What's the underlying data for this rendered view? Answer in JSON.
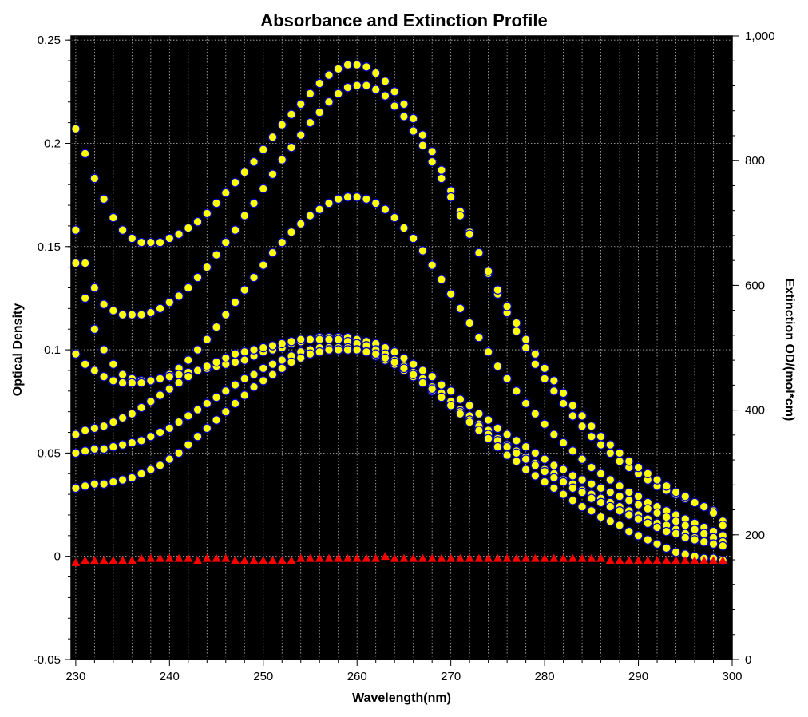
{
  "chart_data": {
    "type": "scatter",
    "title": "Absorbance and Extinction Profile",
    "xlabel": "Wavelength(nm)",
    "ylabel": "Optical Density",
    "y2label": "Extinction OD/(mol*cm)",
    "xlim": [
      229.5,
      300
    ],
    "ylim": [
      -0.05,
      0.252
    ],
    "y2lim": [
      0,
      1000
    ],
    "x_ticks": [
      "230",
      "240",
      "250",
      "260",
      "270",
      "280",
      "290",
      "300"
    ],
    "y_ticks": [
      "-0.05",
      "0",
      "0.05",
      "0.1",
      "0.15",
      "0.2",
      "0.25"
    ],
    "y2_ticks": [
      "0",
      "200",
      "400",
      "600",
      "800",
      "1,000"
    ],
    "background": "#000000",
    "grid": true,
    "colors": {
      "point_fill": "#ffff00",
      "point_stroke": "#0000cc",
      "residual": "#ff0000"
    },
    "x": [
      230,
      231,
      232,
      233,
      234,
      235,
      236,
      237,
      238,
      239,
      240,
      241,
      242,
      243,
      244,
      245,
      246,
      247,
      248,
      249,
      250,
      251,
      252,
      253,
      254,
      255,
      256,
      257,
      258,
      259,
      260,
      261,
      262,
      263,
      264,
      265,
      266,
      267,
      268,
      269,
      270,
      271,
      272,
      273,
      274,
      275,
      276,
      277,
      278,
      279,
      280,
      281,
      282,
      283,
      284,
      285,
      286,
      287,
      288,
      289,
      290,
      291,
      292,
      293,
      294,
      295,
      296,
      297,
      298,
      299
    ],
    "series": [
      {
        "values": [
          0.207,
          0.195,
          0.183,
          0.173,
          0.164,
          0.158,
          0.154,
          0.152,
          0.152,
          0.152,
          0.154,
          0.156,
          0.159,
          0.162,
          0.166,
          0.171,
          0.176,
          0.181,
          0.186,
          0.191,
          0.197,
          0.203,
          0.209,
          0.214,
          0.219,
          0.224,
          0.229,
          0.233,
          0.236,
          0.238,
          0.238,
          0.237,
          0.234,
          0.23,
          0.225,
          0.219,
          0.212,
          0.204,
          0.196,
          0.187,
          0.177,
          0.167,
          0.157,
          0.147,
          0.137,
          0.127,
          0.118,
          0.109,
          0.101,
          0.093,
          0.086,
          0.08,
          0.074,
          0.068,
          0.063,
          0.058,
          0.054,
          0.05,
          0.046,
          0.043,
          0.04,
          0.037,
          0.034,
          0.032,
          0.03,
          0.028,
          0.026,
          0.024,
          0.022,
          0.017
        ]
      },
      {
        "values": [
          0.158,
          0.142,
          0.13,
          0.122,
          0.119,
          0.117,
          0.117,
          0.117,
          0.118,
          0.12,
          0.123,
          0.126,
          0.13,
          0.135,
          0.14,
          0.146,
          0.152,
          0.158,
          0.165,
          0.171,
          0.178,
          0.185,
          0.192,
          0.198,
          0.204,
          0.21,
          0.215,
          0.22,
          0.224,
          0.227,
          0.228,
          0.228,
          0.226,
          0.223,
          0.218,
          0.213,
          0.206,
          0.199,
          0.191,
          0.183,
          0.174,
          0.165,
          0.156,
          0.147,
          0.138,
          0.129,
          0.121,
          0.113,
          0.105,
          0.098,
          0.091,
          0.085,
          0.079,
          0.073,
          0.068,
          0.063,
          0.058,
          0.054,
          0.05,
          0.046,
          0.043,
          0.04,
          0.037,
          0.034,
          0.031,
          0.029,
          0.026,
          0.024,
          0.021,
          0.015
        ]
      },
      {
        "values": [
          0.142,
          0.125,
          0.11,
          0.1,
          0.093,
          0.088,
          0.086,
          0.085,
          0.085,
          0.086,
          0.088,
          0.091,
          0.095,
          0.1,
          0.105,
          0.111,
          0.117,
          0.123,
          0.129,
          0.135,
          0.141,
          0.147,
          0.152,
          0.157,
          0.161,
          0.165,
          0.168,
          0.171,
          0.173,
          0.174,
          0.174,
          0.173,
          0.171,
          0.168,
          0.164,
          0.159,
          0.154,
          0.148,
          0.141,
          0.134,
          0.127,
          0.12,
          0.113,
          0.106,
          0.099,
          0.092,
          0.086,
          0.08,
          0.074,
          0.069,
          0.064,
          0.059,
          0.055,
          0.051,
          0.047,
          0.043,
          0.04,
          0.037,
          0.034,
          0.031,
          0.029,
          0.026,
          0.024,
          0.022,
          0.02,
          0.018,
          0.016,
          0.014,
          0.012,
          0.01
        ]
      },
      {
        "values": [
          0.098,
          0.093,
          0.09,
          0.087,
          0.085,
          0.084,
          0.084,
          0.084,
          0.085,
          0.086,
          0.087,
          0.088,
          0.089,
          0.09,
          0.091,
          0.092,
          0.093,
          0.094,
          0.095,
          0.097,
          0.099,
          0.1,
          0.101,
          0.103,
          0.104,
          0.105,
          0.106,
          0.106,
          0.106,
          0.106,
          0.105,
          0.104,
          0.103,
          0.101,
          0.099,
          0.096,
          0.093,
          0.09,
          0.087,
          0.083,
          0.08,
          0.076,
          0.073,
          0.069,
          0.066,
          0.062,
          0.059,
          0.056,
          0.053,
          0.05,
          0.047,
          0.044,
          0.042,
          0.039,
          0.037,
          0.035,
          0.033,
          0.031,
          0.029,
          0.027,
          0.025,
          0.023,
          0.021,
          0.019,
          0.017,
          0.015,
          0.013,
          0.011,
          0.009,
          0.007
        ]
      },
      {
        "values": [
          0.059,
          0.061,
          0.062,
          0.063,
          0.065,
          0.067,
          0.069,
          0.072,
          0.075,
          0.078,
          0.081,
          0.084,
          0.087,
          0.09,
          0.092,
          0.094,
          0.096,
          0.098,
          0.099,
          0.1,
          0.101,
          0.102,
          0.103,
          0.104,
          0.105,
          0.105,
          0.105,
          0.105,
          0.105,
          0.104,
          0.103,
          0.102,
          0.1,
          0.098,
          0.095,
          0.092,
          0.089,
          0.086,
          0.082,
          0.079,
          0.075,
          0.071,
          0.068,
          0.064,
          0.061,
          0.057,
          0.054,
          0.051,
          0.048,
          0.045,
          0.042,
          0.04,
          0.037,
          0.035,
          0.032,
          0.03,
          0.028,
          0.026,
          0.024,
          0.022,
          0.02,
          0.018,
          0.016,
          0.015,
          0.013,
          0.011,
          0.009,
          0.007,
          0.006,
          0.005
        ]
      },
      {
        "values": [
          0.05,
          0.051,
          0.052,
          0.052,
          0.053,
          0.054,
          0.055,
          0.056,
          0.058,
          0.06,
          0.062,
          0.065,
          0.068,
          0.071,
          0.074,
          0.077,
          0.08,
          0.083,
          0.086,
          0.088,
          0.091,
          0.093,
          0.095,
          0.097,
          0.099,
          0.1,
          0.101,
          0.101,
          0.101,
          0.101,
          0.1,
          0.099,
          0.097,
          0.095,
          0.093,
          0.09,
          0.087,
          0.084,
          0.08,
          0.077,
          0.073,
          0.07,
          0.066,
          0.063,
          0.059,
          0.056,
          0.053,
          0.05,
          0.047,
          0.044,
          0.041,
          0.038,
          0.036,
          0.033,
          0.031,
          0.028,
          0.026,
          0.024,
          0.022,
          0.02,
          0.018,
          0.016,
          0.014,
          0.012,
          0.011,
          0.009,
          0.008,
          0.007,
          0.006,
          0.005
        ]
      },
      {
        "values": [
          0.033,
          0.034,
          0.035,
          0.035,
          0.036,
          0.037,
          0.038,
          0.04,
          0.042,
          0.044,
          0.047,
          0.05,
          0.054,
          0.058,
          0.062,
          0.066,
          0.07,
          0.074,
          0.078,
          0.082,
          0.085,
          0.088,
          0.091,
          0.094,
          0.096,
          0.098,
          0.099,
          0.1,
          0.1,
          0.1,
          0.1,
          0.099,
          0.098,
          0.096,
          0.094,
          0.091,
          0.088,
          0.084,
          0.081,
          0.077,
          0.073,
          0.069,
          0.065,
          0.061,
          0.057,
          0.053,
          0.049,
          0.046,
          0.042,
          0.039,
          0.036,
          0.033,
          0.03,
          0.027,
          0.024,
          0.022,
          0.019,
          0.017,
          0.015,
          0.012,
          0.01,
          0.008,
          0.006,
          0.004,
          0.002,
          0.001,
          0.0,
          -0.001,
          -0.001,
          -0.002
        ]
      },
      {
        "marker": "triangle",
        "values": [
          -0.003,
          -0.002,
          -0.002,
          -0.002,
          -0.002,
          -0.002,
          -0.002,
          -0.001,
          -0.001,
          -0.001,
          -0.001,
          -0.001,
          -0.001,
          -0.002,
          -0.001,
          -0.001,
          -0.001,
          -0.002,
          -0.002,
          -0.002,
          -0.002,
          -0.002,
          -0.002,
          -0.002,
          -0.001,
          -0.001,
          -0.001,
          -0.001,
          -0.001,
          -0.001,
          -0.001,
          -0.001,
          -0.001,
          0.0,
          -0.001,
          -0.001,
          -0.001,
          -0.001,
          -0.001,
          -0.001,
          -0.001,
          -0.001,
          -0.001,
          -0.001,
          -0.001,
          -0.001,
          -0.001,
          -0.001,
          -0.001,
          -0.001,
          -0.001,
          -0.001,
          -0.001,
          -0.001,
          -0.001,
          -0.001,
          -0.001,
          -0.002,
          -0.002,
          -0.002,
          -0.002,
          -0.002,
          -0.002,
          -0.002,
          -0.002,
          -0.002,
          -0.002,
          -0.002,
          -0.002,
          -0.002
        ]
      }
    ]
  }
}
